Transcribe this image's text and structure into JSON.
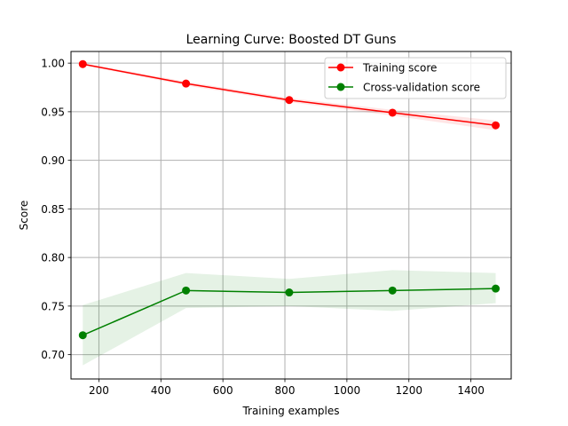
{
  "chart_data": {
    "type": "line",
    "title": "Learning Curve: Boosted DT Guns",
    "xlabel": "Training examples",
    "ylabel": "Score",
    "xlim": [
      110,
      1530
    ],
    "ylim": [
      0.675,
      1.012
    ],
    "grid": true,
    "legend_position": "top-right",
    "x_ticks": [
      200,
      400,
      600,
      800,
      1000,
      1200,
      1400
    ],
    "y_ticks": [
      0.7,
      0.75,
      0.8,
      0.85,
      0.9,
      0.95,
      1.0
    ],
    "x_tick_labels": [
      "200",
      "400",
      "600",
      "800",
      "1000",
      "1200",
      "1400"
    ],
    "y_tick_labels": [
      "0.70",
      "0.75",
      "0.80",
      "0.85",
      "0.90",
      "0.95",
      "1.00"
    ],
    "x": [
      148,
      481,
      814,
      1147,
      1480
    ],
    "series": [
      {
        "name": "Training score",
        "color": "#ff0000",
        "fill_color": "#ff0000",
        "values": [
          0.999,
          0.979,
          0.962,
          0.949,
          0.936
        ],
        "lower": [
          0.998,
          0.977,
          0.96,
          0.946,
          0.931
        ],
        "upper": [
          1.0,
          0.981,
          0.964,
          0.952,
          0.941
        ]
      },
      {
        "name": "Cross-validation score",
        "color": "#008000",
        "fill_color": "#008000",
        "values": [
          0.72,
          0.766,
          0.764,
          0.766,
          0.768
        ],
        "lower": [
          0.689,
          0.748,
          0.75,
          0.745,
          0.753
        ],
        "upper": [
          0.751,
          0.784,
          0.778,
          0.787,
          0.784
        ]
      }
    ]
  }
}
